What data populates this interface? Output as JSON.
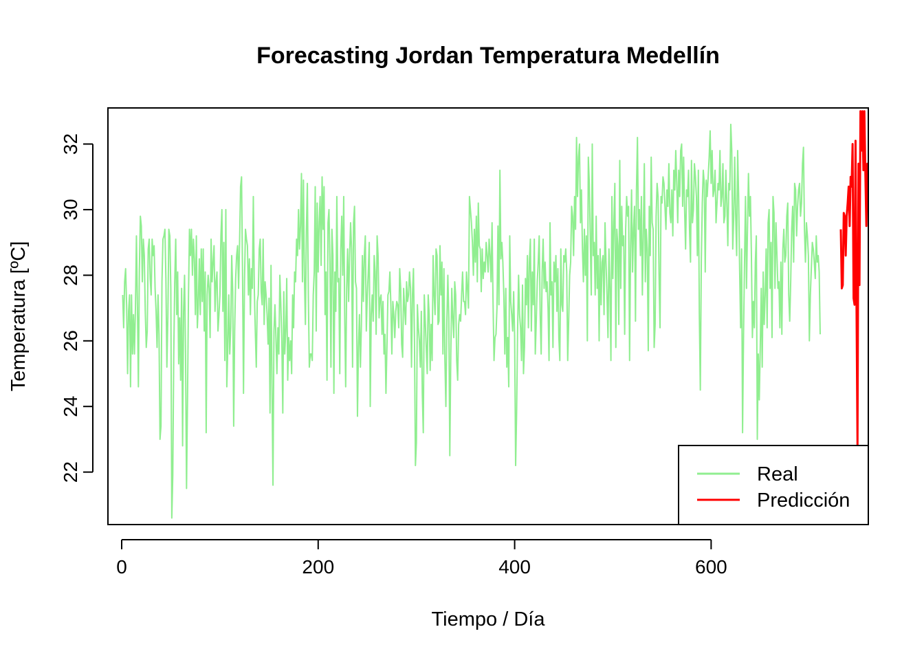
{
  "chart_data": {
    "type": "line",
    "title": "Forecasting Jordan Temperatura Medellín",
    "xlabel": "Tiempo / Día",
    "ylabel": "Temperatura [ºC]",
    "xlim": [
      -14,
      760
    ],
    "ylim": [
      20.4,
      33.1
    ],
    "xticks": [
      0,
      200,
      400,
      600
    ],
    "yticks": [
      22,
      24,
      26,
      28,
      30,
      32
    ],
    "grid": false,
    "legend_position": "bottom-right",
    "series": [
      {
        "name": "Real",
        "color": "#90EE90",
        "x_start": 1,
        "values": [
          27.4,
          26.4,
          27.8,
          28.2,
          27.1,
          25.0,
          26.9,
          27.4,
          24.6,
          27.4,
          25.6,
          26.8,
          25.6,
          27.0,
          29.2,
          27.1,
          24.6,
          28.2,
          29.8,
          29.5,
          27.8,
          29.1,
          28.6,
          26.9,
          25.8,
          26.3,
          28.8,
          29.1,
          27.9,
          27.4,
          29.1,
          28.6,
          28.9,
          27.6,
          26.9,
          25.8,
          27.4,
          26.2,
          23.0,
          23.4,
          27.8,
          29.1,
          29.2,
          29.4,
          27.9,
          25.2,
          26.7,
          29.4,
          29.2,
          27.6,
          20.6,
          21.9,
          25.6,
          27.8,
          29.1,
          26.8,
          28.1,
          25.3,
          26.7,
          24.8,
          27.6,
          22.8,
          26.9,
          28.0,
          25.6,
          21.5,
          24.2,
          27.4,
          29.4,
          28.6,
          29.4,
          28.0,
          29.1,
          28.5,
          26.8,
          29.2,
          26.4,
          27.1,
          28.5,
          26.8,
          28.8,
          27.2,
          28.8,
          26.3,
          28.1,
          23.2,
          27.4,
          28.0,
          27.6,
          26.1,
          29.1,
          27.8,
          28.4,
          28.9,
          26.9,
          27.8,
          28.1,
          26.3,
          26.8,
          27.4,
          29.2,
          30.0,
          26.9,
          29.0,
          25.4,
          30.0,
          24.6,
          25.8,
          27.4,
          25.6,
          26.4,
          28.6,
          27.5,
          23.4,
          26.3,
          27.9,
          28.6,
          28.9,
          27.6,
          29.0,
          30.7,
          31.0,
          28.1,
          24.4,
          27.8,
          29.4,
          29.1,
          28.9,
          27.4,
          28.5,
          26.8,
          28.2,
          27.6,
          30.4,
          27.6,
          26.3,
          25.2,
          27.2,
          27.4,
          28.8,
          29.1,
          27.5,
          27.1,
          29.1,
          26.5,
          27.8,
          27.4,
          26.8,
          25.9,
          27.3,
          23.8,
          28.3,
          24.6,
          21.6,
          26.3,
          27.1,
          26.1,
          25.0,
          26.4,
          25.6,
          28.0,
          27.1,
          26.0,
          23.8,
          27.5,
          25.6,
          26.3,
          27.9,
          24.8,
          26.1,
          25.4,
          26.0,
          25.0,
          27.4,
          26.4,
          28.1,
          27.8,
          29.1,
          28.6,
          30.0,
          28.8,
          29.5,
          31.1,
          27.8,
          30.9,
          28.0,
          26.5,
          29.4,
          30.8,
          27.4,
          25.2,
          25.6,
          25.6,
          25.4,
          27.4,
          28.1,
          30.7,
          26.3,
          30.2,
          28.1,
          29.6,
          30.4,
          28.3,
          31.0,
          29.4,
          30.7,
          26.8,
          28.1,
          24.8,
          29.6,
          30.0,
          28.4,
          25.2,
          29.4,
          28.6,
          24.4,
          28.1,
          26.9,
          30.4,
          27.8,
          27.9,
          25.0,
          28.8,
          29.8,
          28.0,
          30.4,
          26.8,
          24.6,
          27.6,
          28.8,
          27.2,
          28.6,
          29.6,
          28.8,
          25.2,
          29.6,
          30.1,
          27.8,
          27.6,
          23.7,
          25.8,
          26.8,
          25.2,
          26.5,
          28.6,
          27.2,
          28.6,
          29.2,
          26.3,
          27.4,
          28.1,
          29.0,
          24.0,
          26.8,
          27.4,
          26.6,
          28.6,
          28.1,
          26.2,
          29.2,
          28.6,
          26.7,
          27.3,
          27.4,
          26.2,
          27.2,
          25.6,
          26.2,
          24.4,
          25.8,
          27.4,
          27.5,
          28.1,
          27.1,
          25.6,
          27.2,
          26.8,
          26.1,
          26.9,
          27.2,
          27.1,
          26.4,
          28.2,
          27.6,
          25.9,
          25.5,
          27.6,
          27.0,
          26.5,
          27.8,
          27.2,
          27.4,
          28.1,
          27.6,
          25.2,
          27.4,
          28.2,
          26.1,
          22.2,
          22.9,
          27.1,
          26.4,
          26.0,
          25.2,
          26.9,
          24.4,
          23.2,
          27.4,
          26.6,
          25.8,
          25.0,
          27.4,
          26.8,
          25.1,
          26.5,
          25.4,
          28.6,
          27.4,
          26.8,
          28.8,
          28.6,
          26.5,
          26.6,
          28.9,
          27.4,
          28.4,
          25.6,
          28.2,
          25.4,
          24.0,
          26.6,
          28.0,
          26.7,
          22.5,
          25.6,
          27.6,
          26.7,
          26.1,
          27.8,
          27.4,
          25.4,
          24.8,
          26.5,
          26.8,
          26.6,
          27.4,
          28.1,
          27.2,
          27.2,
          26.8,
          28.1,
          27.6,
          27.0,
          30.4,
          30.0,
          29.6,
          29.0,
          28.0,
          29.4,
          28.4,
          29.8,
          27.8,
          30.2,
          28.9,
          28.8,
          27.5,
          28.8,
          27.9,
          28.4,
          28.1,
          29.0,
          28.6,
          28.1,
          29.1,
          28.6,
          27.8,
          29.6,
          27.2,
          25.4,
          26.1,
          26.2,
          27.0,
          29.5,
          27.1,
          31.2,
          28.5,
          29.0,
          28.4,
          27.4,
          25.6,
          27.6,
          25.2,
          26.1,
          24.6,
          29.2,
          27.2,
          26.8,
          26.3,
          27.5,
          26.1,
          22.2,
          23.8,
          26.3,
          28.0,
          26.8,
          26.4,
          25.4,
          27.7,
          25.0,
          25.8,
          27.9,
          27.1,
          28.6,
          26.4,
          28.4,
          29.1,
          26.3,
          28.1,
          27.1,
          29.1,
          25.6,
          26.6,
          27.8,
          28.4,
          29.2,
          26.8,
          25.6,
          28.1,
          29.1,
          27.6,
          28.4,
          27.5,
          27.8,
          27.0,
          25.4,
          29.6,
          27.4,
          27.8,
          25.8,
          28.4,
          27.8,
          28.6,
          26.9,
          28.2,
          26.1,
          25.4,
          28.8,
          27.1,
          26.9,
          28.6,
          28.4,
          28.8,
          28.1,
          25.4,
          26.6,
          28.0,
          28.4,
          30.1,
          29.8,
          28.6,
          30.4,
          29.4,
          32.2,
          30.4,
          31.6,
          32.0,
          29.6,
          30.6,
          28.8,
          27.8,
          29.4,
          28.0,
          29.2,
          26.0,
          31.6,
          30.8,
          29.1,
          27.4,
          32.0,
          28.6,
          29.0,
          27.4,
          29.8,
          27.6,
          28.6,
          26.0,
          28.8,
          27.1,
          28.4,
          28.6,
          26.8,
          29.6,
          28.4,
          27.4,
          26.1,
          28.8,
          27.6,
          25.4,
          30.4,
          27.9,
          29.6,
          30.8,
          25.8,
          29.4,
          28.9,
          26.5,
          31.5,
          27.6,
          30.1,
          28.9,
          29.2,
          26.2,
          29.4,
          30.4,
          29.8,
          30.1,
          25.4,
          28.8,
          30.6,
          28.1,
          29.4,
          30.1,
          26.6,
          30.6,
          32.2,
          29.4,
          30.0,
          28.6,
          30.4,
          27.4,
          29.2,
          31.4,
          27.8,
          29.4,
          28.8,
          25.7,
          30.1,
          28.6,
          31.6,
          29.6,
          29.4,
          25.8,
          26.5,
          29.8,
          30.8,
          30.4,
          28.0,
          26.4,
          30.4,
          30.2,
          31.0,
          30.8,
          30.1,
          29.4,
          30.6,
          30.1,
          31.4,
          29.9,
          29.6,
          30.6,
          29.2,
          31.2,
          30.6,
          31.8,
          30.8,
          29.6,
          31.2,
          30.4,
          31.8,
          32.0,
          30.1,
          31.6,
          30.0,
          28.8,
          30.6,
          30.4,
          31.2,
          29.4,
          28.4,
          31.5,
          29.6,
          30.0,
          31.4,
          31.0,
          30.4,
          28.6,
          31.2,
          26.8,
          24.5,
          28.4,
          30.2,
          31.2,
          30.8,
          28.1,
          30.9,
          30.4,
          31.0,
          31.6,
          32.4,
          30.8,
          31.8,
          30.4,
          30.6,
          31.2,
          29.6,
          30.2,
          30.8,
          30.6,
          31.8,
          30.1,
          30.4,
          31.4,
          29.6,
          29.8,
          31.2,
          30.2,
          28.9,
          30.8,
          30.6,
          32.6,
          31.8,
          28.8,
          29.8,
          31.6,
          29.8,
          28.6,
          31.8,
          30.4,
          28.2,
          26.4,
          28.8,
          23.2,
          26.2,
          28.4,
          30.4,
          27.6,
          29.4,
          31.1,
          29.8,
          30.4,
          28.6,
          26.1,
          27.2,
          26.4,
          28.4,
          29.2,
          23.0,
          25.6,
          24.2,
          25.8,
          27.6,
          25.2,
          28.1,
          26.5,
          27.4,
          28.8,
          26.4,
          29.6,
          30.0,
          27.6,
          29.0,
          26.1,
          30.4,
          29.9,
          27.6,
          29.6,
          28.6,
          27.6,
          27.8,
          26.4,
          28.4,
          26.2,
          28.8,
          29.4,
          28.4,
          28.6,
          29.8,
          30.2,
          27.4,
          26.6,
          27.8,
          29.4,
          30.1,
          28.4,
          30.8,
          30.6,
          29.2,
          30.1,
          30.6,
          30.8,
          29.8,
          30.2,
          31.4,
          31.9,
          29.4,
          28.4,
          29.6,
          29.2,
          28.6,
          26.0,
          27.4,
          28.2,
          29.0,
          28.8,
          28.4,
          27.9,
          29.2,
          28.4,
          28.6,
          28.1,
          26.2
        ]
      },
      {
        "name": "Predicción",
        "color": "#FF0000",
        "x_start": 732,
        "values": [
          29.4,
          27.6,
          27.7,
          29.9,
          29.8,
          28.6,
          29.8,
          30.2,
          30.7,
          29.5,
          31.0,
          30.7,
          32.0,
          27.3,
          27.1,
          32.1,
          27.0,
          22.8,
          31.4,
          27.7,
          33.0,
          31.8,
          33.0,
          31.2,
          33.0,
          31.1,
          29.5,
          31.4,
          31.0,
          32.1
        ]
      }
    ]
  }
}
